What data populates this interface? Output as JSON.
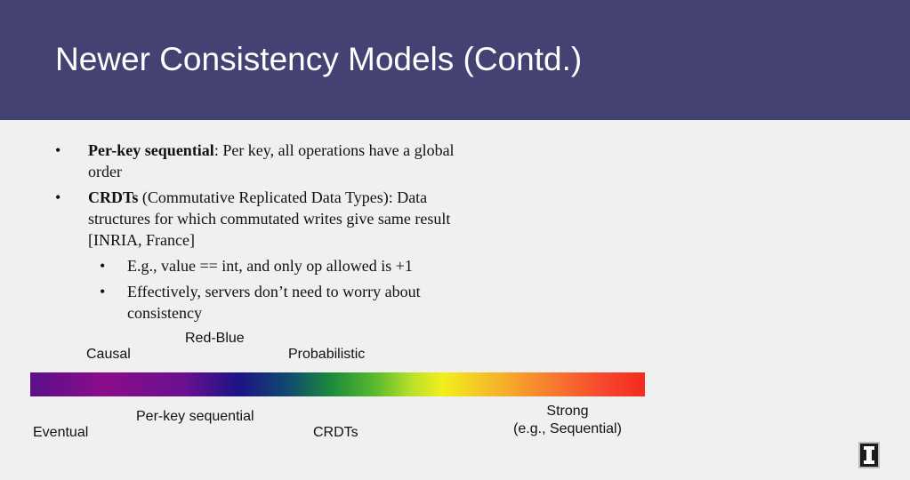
{
  "slide": {
    "title": "Newer Consistency Models (Contd.)",
    "colors": {
      "header_bg": "#434273",
      "body_bg": "#f0f0f0",
      "title_text": "#ffffff"
    }
  },
  "bullets": [
    {
      "marker": "•",
      "bold": "Per-key sequential",
      "line1": ": Per key, all operations have a global",
      "line2": "order"
    },
    {
      "marker": "•",
      "bold": "CRDTs",
      "line1": " (Commutative Replicated Data Types): Data",
      "line2": "structures for which commutated writes give same result",
      "line3": "[INRIA, France]"
    },
    {
      "marker": "•",
      "line1": "E.g., value == int, and only op allowed is +1"
    },
    {
      "marker": "•",
      "line1": "Effectively, servers don’t need to worry about",
      "line2": "consistency"
    }
  ],
  "spectrum": {
    "labels_above": {
      "causal": "Causal",
      "red_blue": "Red-Blue",
      "probabilistic": "Probabilistic"
    },
    "labels_below": {
      "eventual": "Eventual",
      "per_key_sequential": "Per-key sequential",
      "crdts": "CRDTs",
      "strong_line1": "Strong",
      "strong_line2": "(e.g., Sequential)"
    }
  },
  "logo": {
    "icon": "university-block-i-logo"
  }
}
